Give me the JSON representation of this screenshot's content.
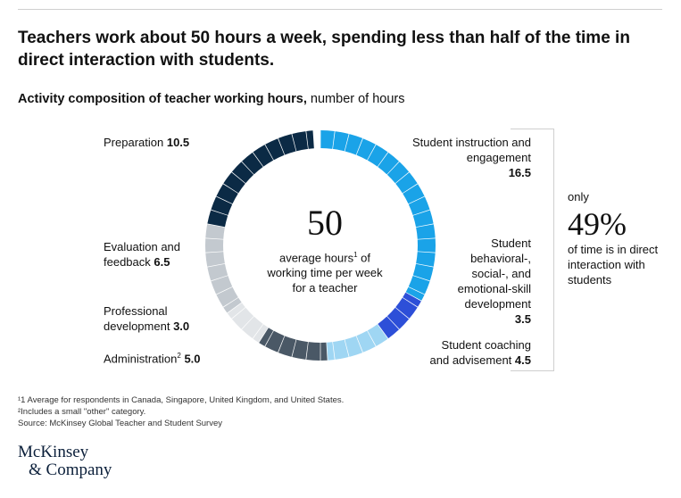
{
  "header": {
    "title": "Teachers work about 50 hours a week, spending less than half of the time in direct interaction with students.",
    "subtitle_bold": "Activity composition of teacher working hours,",
    "subtitle_rest": " number of hours"
  },
  "center": {
    "total": "50",
    "desc_pre": "average hours",
    "desc_sup": "1",
    "desc_post": " of working time per week for a teacher"
  },
  "side": {
    "pre": "only",
    "percent": "49%",
    "post": "of time is in direct interaction with students"
  },
  "footnotes": {
    "note1": "¹1 Average for respondents in Canada, Singapore, United Kingdom, and United States.",
    "note2": "²Includes a small \"other\" category.",
    "source": "Source: McKinsey Global Teacher and Student Survey"
  },
  "logo": {
    "line1": "McKinsey",
    "line2": "& Company"
  },
  "chart_data": {
    "type": "pie",
    "variant": "segmented donut",
    "unit": "hours",
    "total": 50,
    "series": [
      {
        "label": "Student instruction and engagement",
        "value_text": "16.5",
        "value": 16.5,
        "color": "#1aa3e8"
      },
      {
        "label": "Student behavioral-, social-, and emotional-skill development",
        "value_text": "3.5",
        "value": 3.5,
        "color": "#2d4fd8"
      },
      {
        "label": "Student coaching and advisement",
        "value_text": "4.5",
        "value": 4.5,
        "color": "#9fd6f3"
      },
      {
        "label": "Administration",
        "label_sup": "2",
        "value_text": "5.0",
        "value": 5.0,
        "color": "#4a5866"
      },
      {
        "label": "Professional development",
        "value_text": "3.0",
        "value": 3.0,
        "color": "#e2e5e8"
      },
      {
        "label": "Evaluation and feedback",
        "value_text": "6.5",
        "value": 6.5,
        "color": "#c3c9cf"
      },
      {
        "label": "Preparation",
        "value_text": "10.5",
        "value": 10.5,
        "color": "#0b2a45"
      }
    ]
  }
}
